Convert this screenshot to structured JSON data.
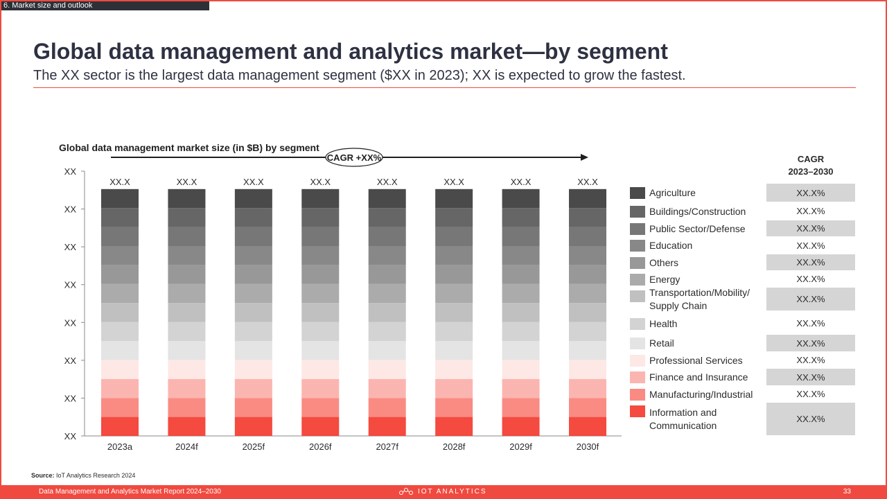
{
  "section": "6. Market size and outlook",
  "title": "Global data management and analytics market—by segment",
  "subtitle": "The XX sector is the largest data management segment ($XX in 2023); XX is expected to grow the fastest.",
  "chart_data": {
    "type": "bar",
    "stacked": true,
    "title": "Global data management market size (in $B) by segment",
    "categories": [
      "2023a",
      "2024f",
      "2025f",
      "2026f",
      "2027f",
      "2028f",
      "2029f",
      "2030f"
    ],
    "totals": [
      "XX.X",
      "XX.X",
      "XX.X",
      "XX.X",
      "XX.X",
      "XX.X",
      "XX.X",
      "XX.X"
    ],
    "y_tick_labels": [
      "XX",
      "XX",
      "XX",
      "XX",
      "XX",
      "XX",
      "XX",
      "XX"
    ],
    "annotation": "CAGR +XX%",
    "series": [
      {
        "name": "Information and Communication",
        "color": "#f44a3f",
        "values": [
          1,
          1,
          1,
          1,
          1,
          1,
          1,
          1
        ]
      },
      {
        "name": "Manufacturing/Industrial",
        "color": "#f98b83",
        "values": [
          1,
          1,
          1,
          1,
          1,
          1,
          1,
          1
        ]
      },
      {
        "name": "Finance and Insurance",
        "color": "#fbb5b0",
        "values": [
          1,
          1,
          1,
          1,
          1,
          1,
          1,
          1
        ]
      },
      {
        "name": "Professional Services",
        "color": "#fde8e6",
        "values": [
          1,
          1,
          1,
          1,
          1,
          1,
          1,
          1
        ]
      },
      {
        "name": "Retail",
        "color": "#e4e4e4",
        "values": [
          1,
          1,
          1,
          1,
          1,
          1,
          1,
          1
        ]
      },
      {
        "name": "Health",
        "color": "#d3d3d3",
        "values": [
          1,
          1,
          1,
          1,
          1,
          1,
          1,
          1
        ]
      },
      {
        "name": "Transportation/Mobility/ Supply Chain",
        "color": "#c0c0c0",
        "values": [
          1,
          1,
          1,
          1,
          1,
          1,
          1,
          1
        ]
      },
      {
        "name": "Energy",
        "color": "#ababab",
        "values": [
          1,
          1,
          1,
          1,
          1,
          1,
          1,
          1
        ]
      },
      {
        "name": "Others",
        "color": "#989898",
        "values": [
          1,
          1,
          1,
          1,
          1,
          1,
          1,
          1
        ]
      },
      {
        "name": "Education",
        "color": "#888888",
        "values": [
          1,
          1,
          1,
          1,
          1,
          1,
          1,
          1
        ]
      },
      {
        "name": "Public Sector/Defense",
        "color": "#777777",
        "values": [
          1,
          1,
          1,
          1,
          1,
          1,
          1,
          1
        ]
      },
      {
        "name": "Buildings/Construction",
        "color": "#666666",
        "values": [
          1,
          1,
          1,
          1,
          1,
          1,
          1,
          1
        ]
      },
      {
        "name": "Agriculture",
        "color": "#4a4a4a",
        "values": [
          1,
          1,
          1,
          1,
          1,
          1,
          1,
          1
        ]
      }
    ]
  },
  "legend": {
    "cagr_header_line1": "CAGR",
    "cagr_header_line2": "2023–2030",
    "items": [
      {
        "label": "Agriculture",
        "color": "#4a4a4a",
        "cagr": "XX.X%"
      },
      {
        "label": "Buildings/Construction",
        "color": "#666666",
        "cagr": "XX.X%"
      },
      {
        "label": "Public Sector/Defense",
        "color": "#777777",
        "cagr": "XX.X%"
      },
      {
        "label": "Education",
        "color": "#888888",
        "cagr": "XX.X%"
      },
      {
        "label": "Others",
        "color": "#989898",
        "cagr": "XX.X%"
      },
      {
        "label": "Energy",
        "color": "#ababab",
        "cagr": "XX.X%"
      },
      {
        "label": "Transportation/Mobility/",
        "label2": "Supply Chain",
        "color": "#c0c0c0",
        "cagr": "XX.X%"
      },
      {
        "label": "Health",
        "color": "#d3d3d3",
        "cagr": "XX.X%"
      },
      {
        "label": "Retail",
        "color": "#e4e4e4",
        "cagr": "XX.X%"
      },
      {
        "label": "Professional Services",
        "color": "#fde8e6",
        "cagr": "XX.X%"
      },
      {
        "label": "Finance and Insurance",
        "color": "#fbb5b0",
        "cagr": "XX.X%"
      },
      {
        "label": "Manufacturing/Industrial",
        "color": "#f98b83",
        "cagr": "XX.X%"
      },
      {
        "label": "Information  and",
        "label2": "Communication",
        "color": "#f44a3f",
        "cagr": "XX.X%"
      }
    ]
  },
  "source_label": "Source:",
  "source_text": " IoT Analytics Research 2024",
  "footer": {
    "report": "Data Management and Analytics Market Report 2024–2030",
    "brand": "IOT ANALYTICS",
    "page": "33"
  }
}
